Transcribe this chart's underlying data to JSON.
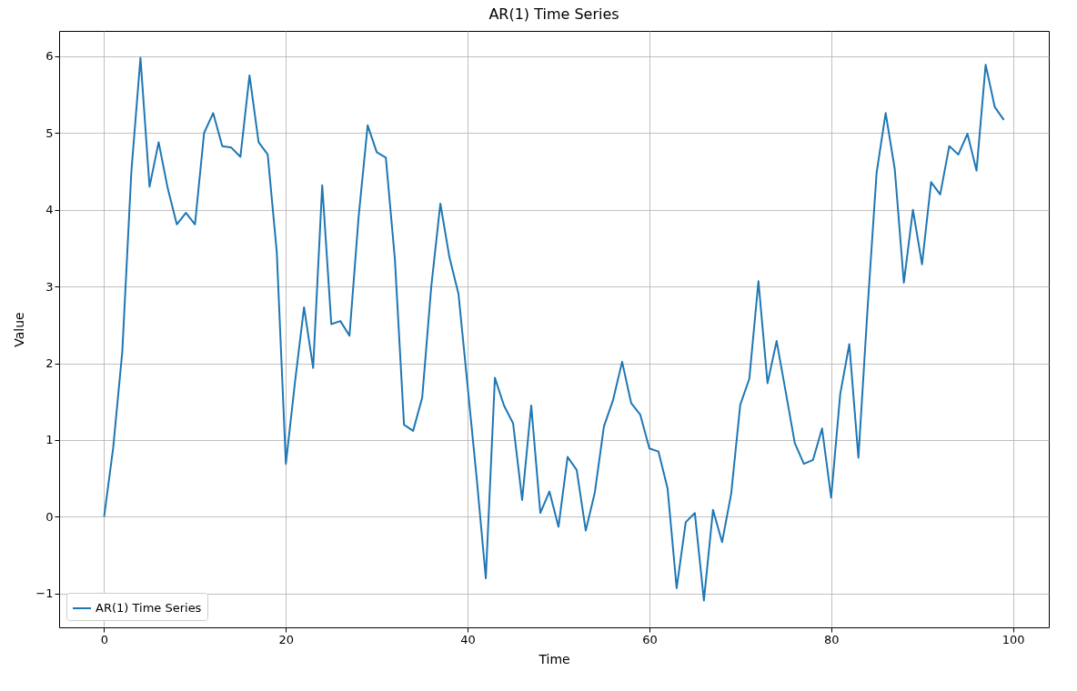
{
  "chart_data": {
    "type": "line",
    "title": "AR(1) Time Series",
    "xlabel": "Time",
    "ylabel": "Value",
    "x": [
      0,
      1,
      2,
      3,
      4,
      5,
      6,
      7,
      8,
      9,
      10,
      11,
      12,
      13,
      14,
      15,
      16,
      17,
      18,
      19,
      20,
      21,
      22,
      23,
      24,
      25,
      26,
      27,
      28,
      29,
      30,
      31,
      32,
      33,
      34,
      35,
      36,
      37,
      38,
      39,
      40,
      41,
      42,
      43,
      44,
      45,
      46,
      47,
      48,
      49,
      50,
      51,
      52,
      53,
      54,
      55,
      56,
      57,
      58,
      59,
      60,
      61,
      62,
      63,
      64,
      65,
      66,
      67,
      68,
      69,
      70,
      71,
      72,
      73,
      74,
      75,
      76,
      77,
      78,
      79,
      80,
      81,
      82,
      83,
      84,
      85,
      86,
      87,
      88,
      89,
      90,
      91,
      92,
      93,
      94,
      95,
      96,
      97,
      98,
      99
    ],
    "series": [
      {
        "name": "AR(1) Time Series",
        "color": "#1f77b4",
        "values": [
          0,
          0.9,
          2.15,
          4.5,
          5.98,
          4.3,
          4.88,
          4.28,
          3.81,
          3.96,
          3.81,
          5.0,
          5.26,
          4.83,
          4.81,
          4.69,
          5.75,
          4.88,
          4.72,
          3.45,
          0.69,
          1.75,
          2.73,
          1.94,
          4.32,
          2.51,
          2.55,
          2.36,
          3.9,
          5.1,
          4.75,
          4.68,
          3.35,
          1.2,
          1.12,
          1.55,
          3.0,
          4.08,
          3.38,
          2.9,
          1.7,
          0.5,
          -0.8,
          1.81,
          1.45,
          1.22,
          0.22,
          1.45,
          0.05,
          0.33,
          -0.13,
          0.78,
          0.61,
          -0.18,
          0.32,
          1.18,
          1.52,
          2.02,
          1.48,
          1.33,
          0.89,
          0.85,
          0.37,
          -0.93,
          -0.07,
          0.05,
          -1.09,
          0.09,
          -0.33,
          0.3,
          1.46,
          1.8,
          3.07,
          1.74,
          2.29,
          1.63,
          0.96,
          0.69,
          0.74,
          1.15,
          0.25,
          1.6,
          2.25,
          0.77,
          2.7,
          4.48,
          5.26,
          4.53,
          3.05,
          4.0,
          3.29,
          4.36,
          4.2,
          4.83,
          4.72,
          4.99,
          4.51,
          5.89,
          5.34,
          5.17
        ]
      }
    ],
    "xlim": [
      -4.95,
      103.95
    ],
    "ylim": [
      -1.44,
      6.33
    ],
    "xticks": [
      0,
      20,
      40,
      60,
      80,
      100
    ],
    "yticks": [
      {
        "value": -1,
        "label": "−1"
      },
      0,
      1,
      2,
      3,
      4,
      5,
      6
    ],
    "grid": true,
    "legend": "bottom left",
    "marker": "none",
    "line_style": "solid"
  }
}
